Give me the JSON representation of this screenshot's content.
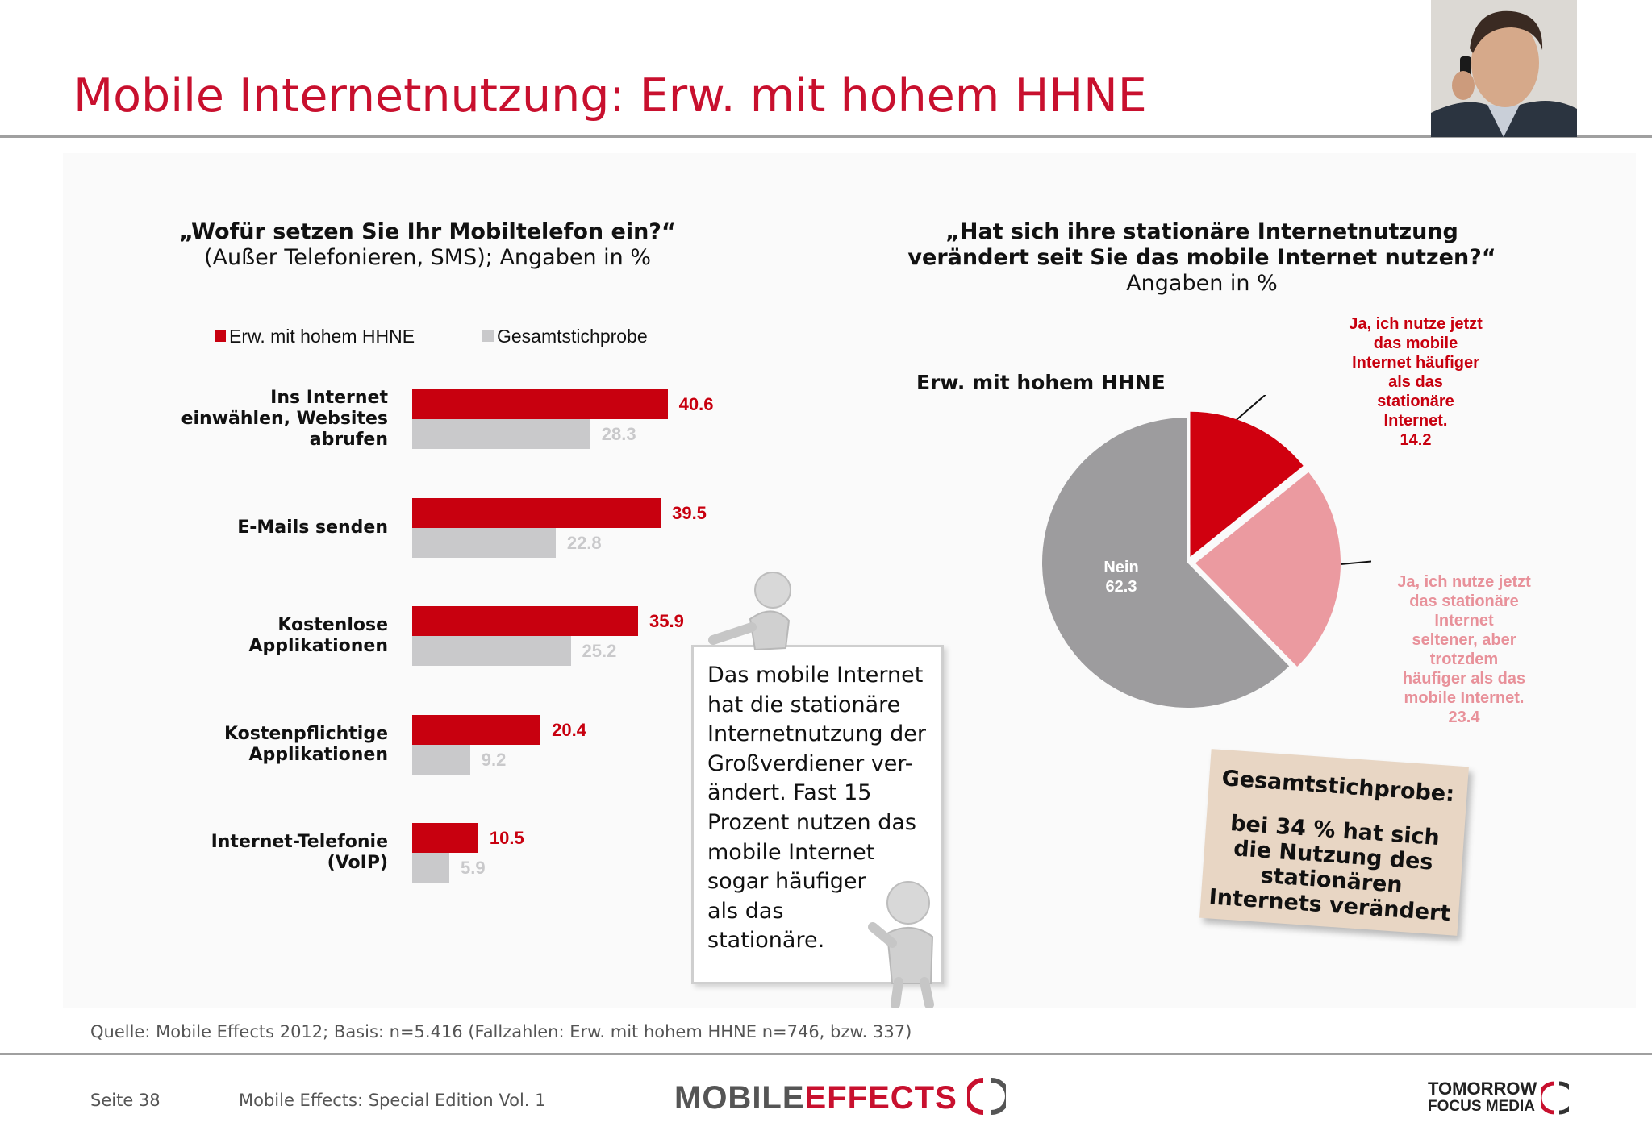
{
  "header": {
    "title": "Mobile Internetnutzung: Erw. mit hohem HHNE"
  },
  "left_chart": {
    "question": "„Wofür setzen Sie Ihr Mobiltelefon ein?“",
    "subtitle": "(Außer Telefonieren, SMS); Angaben in %"
  },
  "right_chart": {
    "question_line1": "„Hat sich ihre stationäre Internetnutzung",
    "question_line2": "verändert seit Sie das mobile Internet nutzen?“",
    "subtitle": "Angaben in %",
    "group_label": "Erw. mit hohem HHNE"
  },
  "chart_data": [
    {
      "type": "bar",
      "orientation": "horizontal",
      "categories": [
        "Ins Internet einwählen, Websites abrufen",
        "E-Mails senden",
        "Kostenlose Applikationen",
        "Kostenpflichtige Applikationen",
        "Internet-Telefonie (VoIP)"
      ],
      "category_lines": [
        [
          "Ins Internet",
          "einwählen, Websites",
          "abrufen"
        ],
        [
          "E-Mails senden"
        ],
        [
          "Kostenlose",
          "Applikationen"
        ],
        [
          "Kostenpflichtige",
          "Applikationen"
        ],
        [
          "Internet-Telefonie",
          "(VoIP)"
        ]
      ],
      "series": [
        {
          "name": "Erw. mit hohem HHNE",
          "color": "#c8000f",
          "values": [
            40.6,
            39.5,
            35.9,
            20.4,
            10.5
          ]
        },
        {
          "name": "Gesamtstichprobe",
          "color": "#c9c9cb",
          "values": [
            28.3,
            22.8,
            25.2,
            9.2,
            5.9
          ]
        }
      ],
      "legend_position": "top",
      "grid": false
    },
    {
      "type": "pie",
      "slices": [
        {
          "label_lines": [
            "Ja, ich nutze jetzt",
            "das mobile",
            "Internet häufiger",
            "als das",
            "stationäre",
            "Internet."
          ],
          "value": 14.2,
          "color": "#d0000f",
          "label_color": "#c8000f"
        },
        {
          "label_lines": [
            "Ja, ich nutze jetzt",
            "das stationäre",
            "Internet",
            "seltener, aber",
            "trotzdem",
            "häufiger als das",
            "mobile Internet."
          ],
          "value": 23.4,
          "color": "#eb9aa0",
          "label_color": "#e8919a"
        },
        {
          "label_lines": [
            "Nein"
          ],
          "value": 62.3,
          "color": "#9d9c9e",
          "label_color": "#ffffff"
        }
      ]
    }
  ],
  "callout": {
    "lines": [
      "Das mobile Internet",
      "hat die stationäre",
      "Internetnutzung der",
      "Großverdiener ver-",
      "ändert. Fast 15",
      "Prozent nutzen das",
      "mobile Internet",
      "sogar häufiger",
      "als das",
      "stationäre."
    ]
  },
  "note": {
    "title": "Gesamtstichprobe:",
    "lines": [
      "bei 34 % hat sich",
      "die Nutzung des",
      "stationären",
      "Internets verändert"
    ]
  },
  "footer": {
    "source": "Quelle: Mobile Effects 2012; Basis: n=5.416 (Fallzahlen: Erw. mit hohem HHNE n=746, bzw. 337)",
    "page": "Seite 38",
    "publication": "Mobile Effects: Special Edition Vol. 1",
    "logo_left_a": "MOBILE",
    "logo_left_b": "EFFECTS",
    "logo_right_line1": "TOMORROW",
    "logo_right_line2": "FOCUS MEDIA"
  },
  "colors": {
    "accent": "#c8102e",
    "bar_primary": "#c8000f",
    "bar_secondary": "#c9c9cb"
  }
}
